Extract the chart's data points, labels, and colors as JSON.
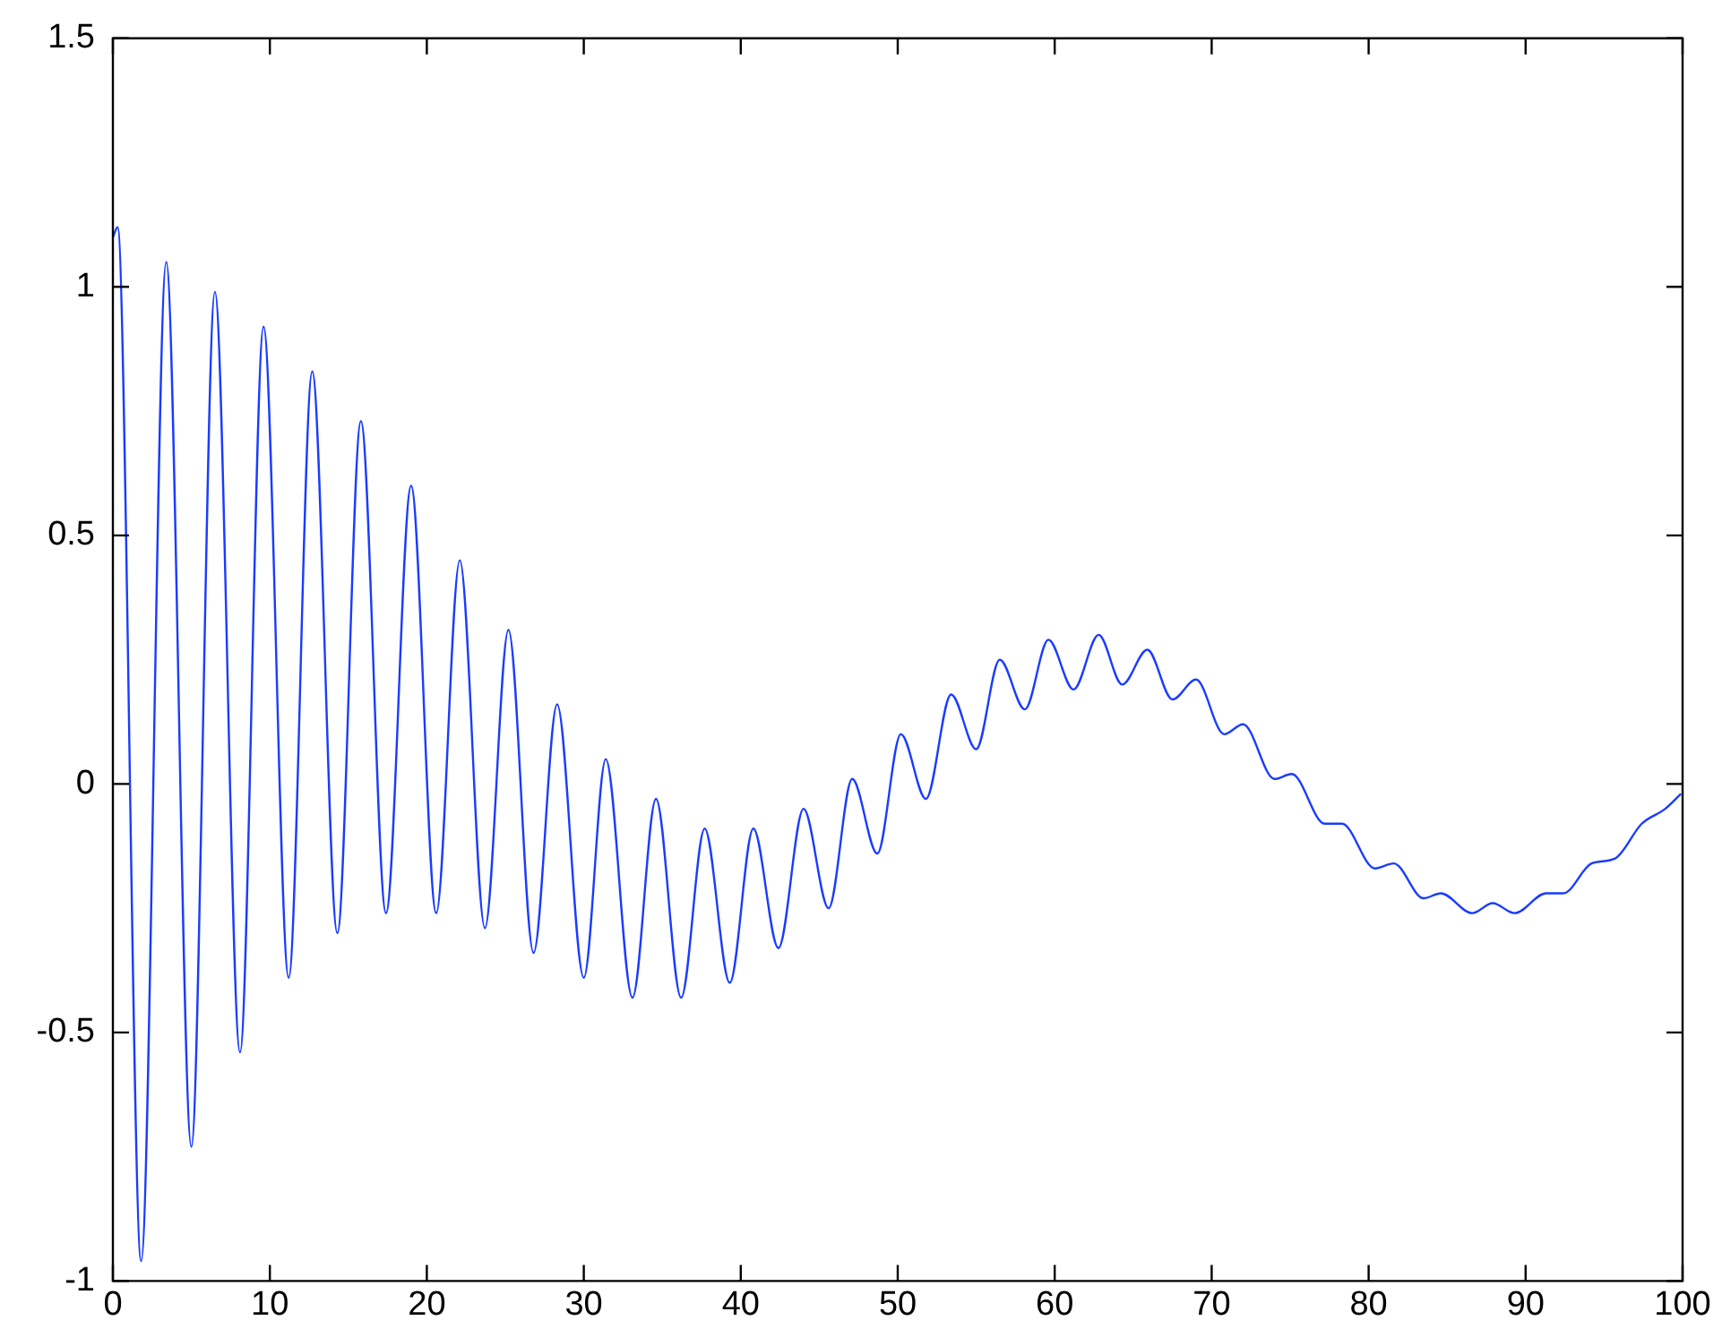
{
  "chart_data": {
    "type": "line",
    "x": [
      0,
      0.3,
      1.8,
      3.4,
      5.0,
      6.5,
      8.1,
      9.6,
      11.2,
      12.7,
      14.3,
      15.8,
      17.4,
      19.0,
      20.6,
      22.1,
      23.7,
      25.2,
      26.8,
      28.3,
      30.0,
      31.4,
      33.1,
      34.6,
      36.2,
      37.7,
      39.3,
      40.8,
      42.4,
      44.0,
      45.6,
      47.1,
      48.7,
      50.2,
      51.8,
      53.4,
      55.0,
      56.5,
      58.1,
      59.6,
      61.2,
      62.8,
      64.3,
      65.9,
      67.5,
      69.0,
      70.8,
      72.0,
      74.0,
      75.1,
      77.2,
      78.3,
      80.4,
      81.6,
      83.5,
      84.6,
      86.6,
      87.9,
      89.3,
      91.3,
      92.4,
      94.2,
      95.7,
      97.4,
      98.9,
      99.9
    ],
    "series": [
      {
        "color": "#1a3cff",
        "values": [
          1.1,
          1.12,
          -0.96,
          1.05,
          -0.73,
          0.99,
          -0.54,
          0.92,
          -0.39,
          0.83,
          -0.3,
          0.73,
          -0.26,
          0.6,
          -0.26,
          0.45,
          -0.29,
          0.31,
          -0.34,
          0.16,
          -0.39,
          0.05,
          -0.43,
          -0.03,
          -0.43,
          -0.09,
          -0.4,
          -0.09,
          -0.33,
          -0.05,
          -0.25,
          0.01,
          -0.14,
          0.1,
          -0.03,
          0.18,
          0.07,
          0.25,
          0.15,
          0.29,
          0.19,
          0.3,
          0.2,
          0.27,
          0.17,
          0.21,
          0.1,
          0.12,
          0.01,
          0.02,
          -0.08,
          -0.08,
          -0.17,
          -0.16,
          -0.23,
          -0.22,
          -0.26,
          -0.24,
          -0.26,
          -0.22,
          -0.22,
          -0.16,
          -0.15,
          -0.08,
          -0.05,
          -0.02
        ]
      }
    ],
    "xlim": [
      0,
      100
    ],
    "xticks": [
      0,
      10,
      20,
      30,
      40,
      50,
      60,
      70,
      80,
      90,
      100
    ],
    "ylim": [
      -1,
      1.5
    ],
    "yticks": [
      -1,
      -0.5,
      0,
      0.5,
      1,
      1.5
    ],
    "grid": false,
    "legend": false,
    "marker": "none",
    "line_style": "solid"
  }
}
